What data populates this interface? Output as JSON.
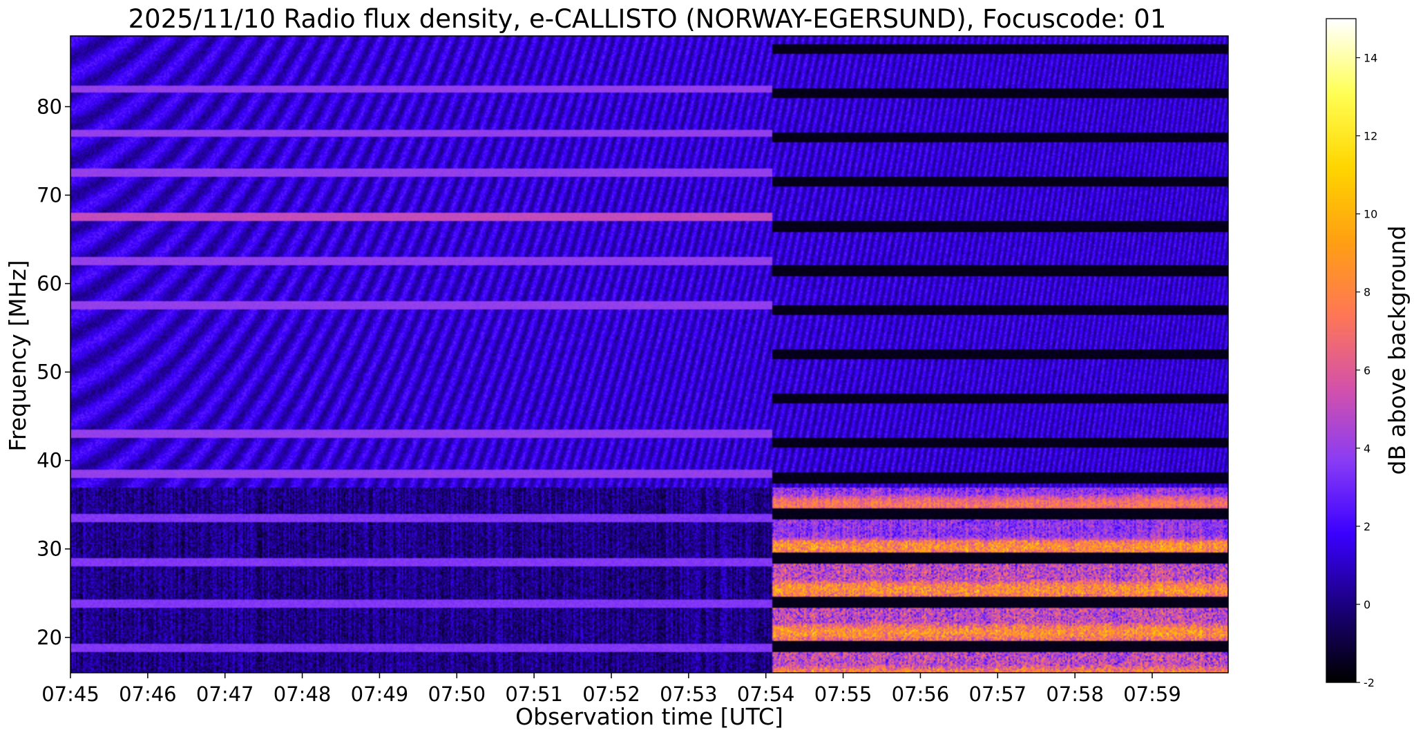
{
  "chart_data": {
    "type": "heatmap",
    "title": "2025/11/10  Radio flux density, e-CALLISTO (NORWAY-EGERSUND), Focuscode: 01",
    "xlabel": "Observation time [UTC]",
    "ylabel": "Frequency [MHz]",
    "x_ticks": [
      "07:45",
      "07:46",
      "07:47",
      "07:48",
      "07:49",
      "07:50",
      "07:51",
      "07:52",
      "07:53",
      "07:54",
      "07:55",
      "07:56",
      "07:57",
      "07:58",
      "07:59"
    ],
    "x_range": [
      "07:45:00",
      "07:59:59"
    ],
    "y_ticks": [
      20,
      30,
      40,
      50,
      60,
      70,
      80
    ],
    "y_range": [
      16,
      88
    ],
    "colorbar": {
      "label": "dB above background",
      "ticks": [
        -2,
        0,
        2,
        4,
        6,
        8,
        10,
        12,
        14
      ],
      "range": [
        -2,
        15
      ],
      "colormap": "gnuplot2",
      "colors": [
        "#000000",
        "#1a007a",
        "#3a00ff",
        "#8a3cf5",
        "#d552a9",
        "#ff7855",
        "#ffa012",
        "#ffd600",
        "#ffff55",
        "#ffffff"
      ]
    },
    "features": {
      "background_db": 1.2,
      "instrument_switch_time": "07:54:05",
      "persistent_bands_first_half_mhz": [
        82,
        77,
        72.5,
        67.5,
        62.5,
        57.5,
        43,
        38.5,
        33.5,
        28.5,
        23.8,
        18.8
      ],
      "gap_bands_second_half_mhz": [
        86.5,
        81.5,
        76.5,
        71.5,
        66.5,
        61.5,
        57,
        52,
        47,
        42,
        38,
        34,
        29,
        24,
        19
      ],
      "bursty_region_mhz": [
        16,
        37
      ],
      "peak_db": 15
    }
  }
}
